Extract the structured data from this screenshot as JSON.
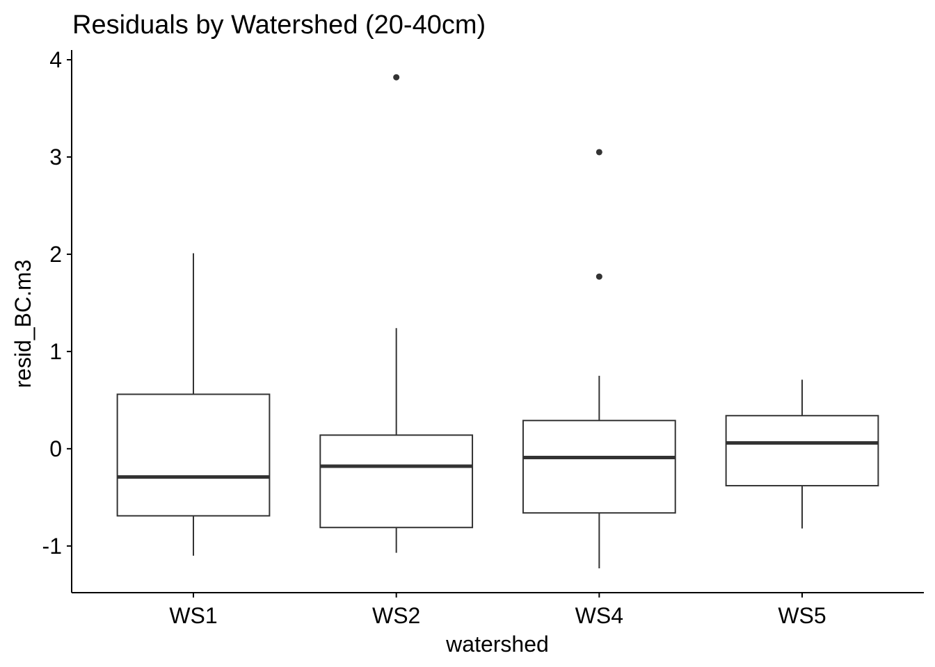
{
  "chart_data": {
    "type": "boxplot",
    "title": "Residuals by Watershed (20-40cm)",
    "xlabel": "watershed",
    "ylabel": "resid_BC.m3",
    "ylim": [
      -1.48,
      4.1
    ],
    "yticks": [
      -1,
      0,
      1,
      2,
      3,
      4
    ],
    "grid": false,
    "categories": [
      "WS1",
      "WS2",
      "WS4",
      "WS5"
    ],
    "boxes": [
      {
        "category": "WS1",
        "whisker_low": -1.1,
        "q1": -0.69,
        "median": -0.29,
        "q3": 0.56,
        "whisker_high": 2.01,
        "outliers": []
      },
      {
        "category": "WS2",
        "whisker_low": -1.07,
        "q1": -0.81,
        "median": -0.18,
        "q3": 0.14,
        "whisker_high": 1.24,
        "outliers": [
          3.82
        ]
      },
      {
        "category": "WS4",
        "whisker_low": -1.23,
        "q1": -0.66,
        "median": -0.09,
        "q3": 0.29,
        "whisker_high": 0.75,
        "outliers": [
          1.77,
          3.05
        ]
      },
      {
        "category": "WS5",
        "whisker_low": -0.82,
        "q1": -0.38,
        "median": 0.06,
        "q3": 0.34,
        "whisker_high": 0.71,
        "outliers": []
      }
    ],
    "colors": {
      "box_stroke": "#333333",
      "median": "#333333",
      "point": "#333333",
      "axis": "#000000"
    }
  }
}
